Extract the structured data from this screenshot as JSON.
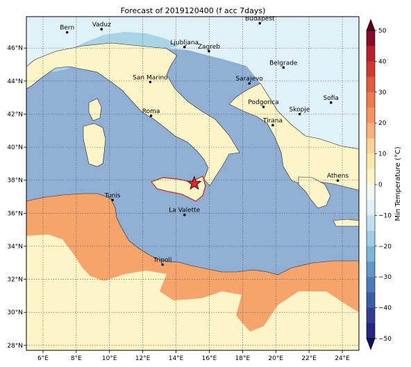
{
  "title": "Forecast of 2019120400 (f acc 7days)",
  "colors": {
    "sea": "#8fb0d4",
    "warm_0_10": "#fdf5c8",
    "warm_10_20": "#f7a46c",
    "cool_0_m10": "#e0f2f8",
    "cool_m10_m20": "#a9d4e6",
    "star": "#e8202a"
  },
  "map": {
    "lon_range": [
      5,
      25
    ],
    "lat_range": [
      27.7,
      47.9
    ],
    "lon_ticks": [
      "6°E",
      "8°E",
      "10°E",
      "12°E",
      "14°E",
      "16°E",
      "18°E",
      "20°E",
      "22°E",
      "24°E"
    ],
    "lat_ticks": [
      "28°N",
      "30°N",
      "32°N",
      "34°N",
      "36°N",
      "38°N",
      "40°N",
      "42°N",
      "44°N",
      "46°N"
    ],
    "lon_tick_values": [
      6,
      8,
      10,
      12,
      14,
      16,
      18,
      20,
      22,
      24
    ],
    "lat_tick_values": [
      28,
      30,
      32,
      34,
      36,
      38,
      40,
      42,
      44,
      46
    ],
    "grid": true,
    "star_marker": {
      "lon": 15.1,
      "lat": 37.8
    },
    "cities": [
      {
        "name": "Bern",
        "lon": 7.45,
        "lat": 46.95
      },
      {
        "name": "Vaduz",
        "lon": 9.52,
        "lat": 47.14
      },
      {
        "name": "Budapest",
        "lon": 19.04,
        "lat": 47.5
      },
      {
        "name": "Ljubljana",
        "lon": 14.51,
        "lat": 46.06
      },
      {
        "name": "Zagreb",
        "lon": 15.98,
        "lat": 45.81
      },
      {
        "name": "San Marino",
        "lon": 12.45,
        "lat": 43.94
      },
      {
        "name": "Sarajevo",
        "lon": 18.41,
        "lat": 43.86
      },
      {
        "name": "Belgrade",
        "lon": 20.46,
        "lat": 44.82
      },
      {
        "name": "Roma",
        "lon": 12.5,
        "lat": 41.9
      },
      {
        "name": "Podgorica",
        "lon": 19.26,
        "lat": 42.44
      },
      {
        "name": "Skopje",
        "lon": 21.43,
        "lat": 42.0
      },
      {
        "name": "Sofia",
        "lon": 23.32,
        "lat": 42.7
      },
      {
        "name": "Tirana",
        "lon": 19.82,
        "lat": 41.33
      },
      {
        "name": "Athens",
        "lon": 23.73,
        "lat": 37.98
      },
      {
        "name": "Tunis",
        "lon": 10.18,
        "lat": 36.8
      },
      {
        "name": "La Valette",
        "lon": 14.51,
        "lat": 35.9
      },
      {
        "name": "Tripoli",
        "lon": 13.19,
        "lat": 32.89
      }
    ]
  },
  "colorbar": {
    "label": "Min Temperature (°C)",
    "vmin": -50,
    "vmax": 50,
    "ticks": [
      "50",
      "40",
      "30",
      "20",
      "10",
      "0",
      "−10",
      "−20",
      "−30",
      "−40",
      "−50"
    ],
    "tick_values": [
      50,
      40,
      30,
      20,
      10,
      0,
      -10,
      -20,
      -30,
      -40,
      -50
    ],
    "bands": [
      {
        "from": 45,
        "to": 50,
        "color": "#8b0a26"
      },
      {
        "from": 40,
        "to": 45,
        "color": "#b51f2e"
      },
      {
        "from": 35,
        "to": 40,
        "color": "#d1392f"
      },
      {
        "from": 30,
        "to": 35,
        "color": "#e45a3d"
      },
      {
        "from": 25,
        "to": 30,
        "color": "#f0794c"
      },
      {
        "from": 20,
        "to": 25,
        "color": "#f7935e"
      },
      {
        "from": 15,
        "to": 20,
        "color": "#fbb07a"
      },
      {
        "from": 10,
        "to": 15,
        "color": "#fdd395"
      },
      {
        "from": 5,
        "to": 10,
        "color": "#fee9a8"
      },
      {
        "from": 0,
        "to": 5,
        "color": "#fdf5c8"
      },
      {
        "from": -5,
        "to": 0,
        "color": "#f2f9f5"
      },
      {
        "from": -10,
        "to": -5,
        "color": "#e0f2f8"
      },
      {
        "from": -15,
        "to": -10,
        "color": "#bfe1ee"
      },
      {
        "from": -20,
        "to": -15,
        "color": "#a0cde3"
      },
      {
        "from": -25,
        "to": -20,
        "color": "#7eb4d6"
      },
      {
        "from": -30,
        "to": -25,
        "color": "#5f98c6"
      },
      {
        "from": -35,
        "to": -30,
        "color": "#4a7db7"
      },
      {
        "from": -40,
        "to": -35,
        "color": "#3b5fa4"
      },
      {
        "from": -45,
        "to": -40,
        "color": "#303f93"
      },
      {
        "from": -50,
        "to": -45,
        "color": "#262584"
      }
    ],
    "under_color": "#12125a",
    "over_color": "#5a0018"
  }
}
